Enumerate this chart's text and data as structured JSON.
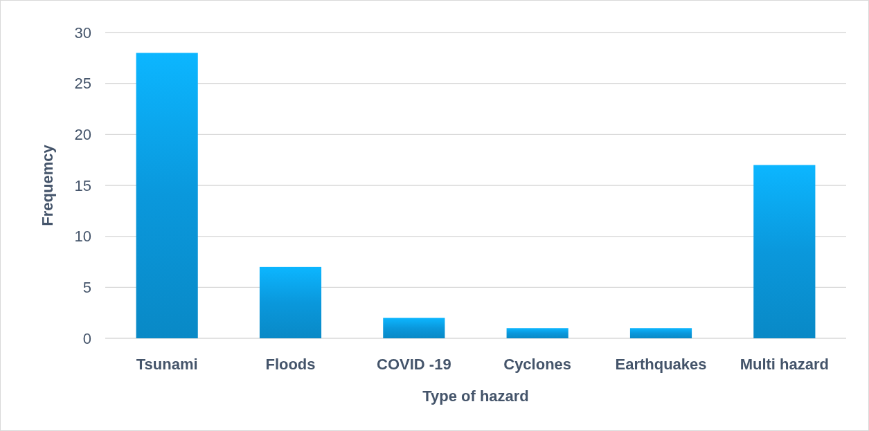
{
  "chart_data": {
    "type": "bar",
    "xlabel": "Type of hazard",
    "ylabel": "Frequemcy",
    "categories": [
      "Tsunami",
      "Floods",
      "COVID -19",
      "Cyclones",
      "Earthquakes",
      "Multi hazard"
    ],
    "values": [
      28,
      7,
      2,
      1,
      1,
      17
    ],
    "color": "#0a98dc",
    "ylim": [
      0,
      30
    ],
    "yticks": [
      0,
      5,
      10,
      15,
      20,
      25,
      30
    ],
    "grid": true
  }
}
